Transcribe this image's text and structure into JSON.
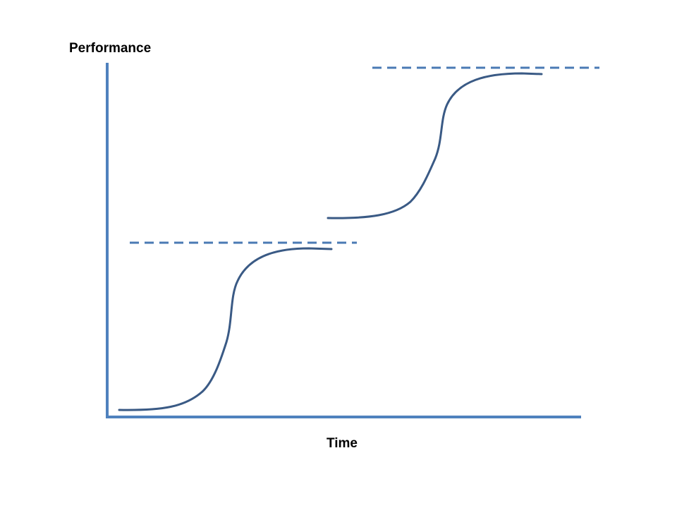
{
  "diagram": {
    "y_axis_label": "Performance",
    "x_axis_label": "Time"
  },
  "colors": {
    "axis": "#4f81bd",
    "curve": "#3a5a85",
    "plateau": "#4a7ab4",
    "text": "#000000",
    "background": "#ffffff"
  },
  "elements": {
    "curves": [
      "s-curve-1",
      "s-curve-2"
    ],
    "plateaus": [
      "plateau-line-1",
      "plateau-line-2"
    ]
  }
}
